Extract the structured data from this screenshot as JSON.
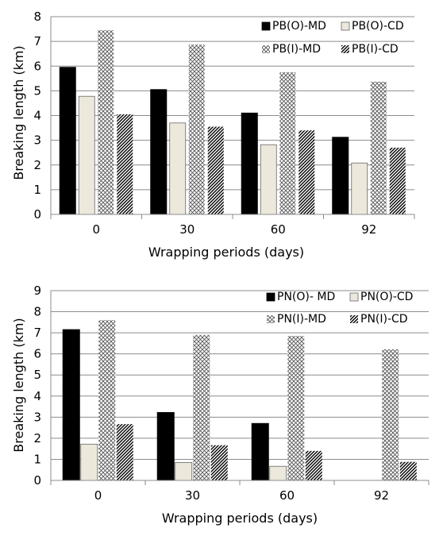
{
  "chart_data": [
    {
      "type": "bar",
      "categories": [
        "0",
        "30",
        "60",
        "92"
      ],
      "xlabel": "Wrapping periods (days)",
      "ylabel": "Breaking length (km)",
      "ylim": [
        0,
        8
      ],
      "yticks": [
        0,
        1,
        2,
        3,
        4,
        5,
        6,
        7,
        8
      ],
      "grid": true,
      "legend": "top-right",
      "series": [
        {
          "name": "PB(O)-MD",
          "values": [
            5.95,
            5.05,
            4.1,
            3.12
          ],
          "pattern": "solid"
        },
        {
          "name": "PB(O)-CD",
          "values": [
            4.78,
            3.7,
            2.82,
            2.08
          ],
          "pattern": "light"
        },
        {
          "name": "PB(I)-MD",
          "values": [
            7.45,
            6.87,
            5.75,
            5.37
          ],
          "pattern": "crosshatch"
        },
        {
          "name": "PB(I)-CD",
          "values": [
            4.05,
            3.55,
            3.4,
            2.7
          ],
          "pattern": "diagonal"
        }
      ]
    },
    {
      "type": "bar",
      "categories": [
        "0",
        "30",
        "60",
        "92"
      ],
      "xlabel": "Wrapping periods (days)",
      "ylabel": "Breaking length (km)",
      "ylim": [
        0,
        9
      ],
      "yticks": [
        0,
        1,
        2,
        3,
        4,
        5,
        6,
        7,
        8,
        9
      ],
      "grid": true,
      "legend": "top-right",
      "series": [
        {
          "name": "PN(O)- MD",
          "values": [
            7.15,
            3.22,
            2.7,
            0
          ],
          "pattern": "solid"
        },
        {
          "name": "PN(O)-CD",
          "values": [
            1.72,
            0.85,
            0.67,
            0
          ],
          "pattern": "light"
        },
        {
          "name": "PN(I)-MD",
          "values": [
            7.6,
            6.9,
            6.85,
            6.22
          ],
          "pattern": "crosshatch"
        },
        {
          "name": "PN(I)-CD",
          "values": [
            2.67,
            1.67,
            1.4,
            0.88
          ],
          "pattern": "diagonal"
        }
      ]
    }
  ]
}
